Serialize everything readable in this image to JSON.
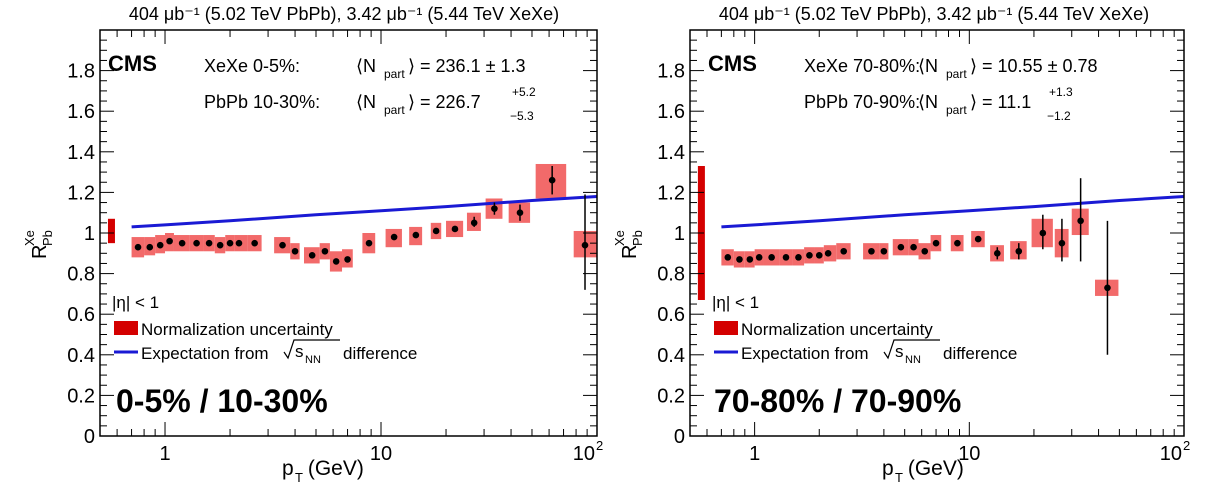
{
  "panels": [
    {
      "header": "404 μb⁻¹ (5.02 TeV PbPb), 3.42 μb⁻¹ (5.44 TeV XeXe)",
      "cms": "CMS",
      "ann1_label": "XeXe 0-5%:",
      "ann1_npart": "⟨N",
      "ann1_sub": "part",
      "ann1_value": "⟩ = 236.1 ± 1.3",
      "ann2_label": "PbPb 10-30%:",
      "ann2_npart": "⟨N",
      "ann2_sub": "part",
      "ann2_value": "⟩ = 226.7",
      "ann2_up": "+5.2",
      "ann2_down": "−5.3",
      "eta_text": "|η| < 1",
      "legend_norm": "Normalization uncertainty",
      "legend_expect": "Expectation from",
      "legend_sqrt": "s",
      "legend_sqrt_sub": "NN",
      "legend_expect_tail": "difference",
      "centrality": "0-5% / 10-30%",
      "ylabel_main": "R",
      "ylabel_sup": "Xe",
      "ylabel_sub": "Pb",
      "xlabel_main": "p",
      "xlabel_sub": "T",
      "xlabel_tail": " (GeV)"
    },
    {
      "header": "404 μb⁻¹ (5.02 TeV PbPb), 3.42 μb⁻¹ (5.44 TeV XeXe)",
      "cms": "CMS",
      "ann1_label": "XeXe 70-80%:",
      "ann1_npart": "⟨N",
      "ann1_sub": "part",
      "ann1_value": "⟩ = 10.55 ± 0.78",
      "ann2_label": "PbPb 70-90%:",
      "ann2_npart": "⟨N",
      "ann2_sub": "part",
      "ann2_value": "⟩ = 11.1",
      "ann2_up": "+1.3",
      "ann2_down": "−1.2",
      "eta_text": "|η| < 1",
      "legend_norm": "Normalization uncertainty",
      "legend_expect": "Expectation from",
      "legend_sqrt": "s",
      "legend_sqrt_sub": "NN",
      "legend_expect_tail": "difference",
      "centrality": "70-80% / 70-90%",
      "ylabel_main": "R",
      "ylabel_sup": "Xe",
      "ylabel_sub": "Pb",
      "xlabel_main": "p",
      "xlabel_sub": "T",
      "xlabel_tail": " (GeV)"
    }
  ],
  "colors": {
    "syst_box": "#f26a6a",
    "norm_box": "#d40000",
    "expectation_line": "#1a1ad4",
    "points": "#000000"
  },
  "chart_data": [
    {
      "type": "scatter",
      "title": "404 μb⁻¹ (5.02 TeV PbPb), 3.42 μb⁻¹ (5.44 TeV XeXe)",
      "xlabel": "p_T (GeV)",
      "ylabel": "R^Xe_Pb",
      "xscale": "log",
      "xlim": [
        0.5,
        100
      ],
      "ylim": [
        0,
        2
      ],
      "yticks": [
        0,
        0.2,
        0.4,
        0.6,
        0.8,
        1,
        1.2,
        1.4,
        1.6,
        1.8
      ],
      "xticks": [
        "1",
        "10",
        "10^2"
      ],
      "normalization": {
        "center": 1.0,
        "low": 0.95,
        "high": 1.07
      },
      "expectation": {
        "x": [
          0.7,
          1,
          2,
          5,
          10,
          20,
          50,
          100
        ],
        "y": [
          1.03,
          1.04,
          1.06,
          1.09,
          1.11,
          1.13,
          1.16,
          1.18
        ]
      },
      "points": [
        {
          "x": 0.75,
          "y": 0.93,
          "xl": 0.7,
          "xh": 0.8,
          "syl": 0.88,
          "syh": 0.98,
          "eyl": 0.92,
          "eyh": 0.94
        },
        {
          "x": 0.85,
          "y": 0.93,
          "xl": 0.8,
          "xh": 0.9,
          "syl": 0.89,
          "syh": 0.98,
          "eyl": 0.92,
          "eyh": 0.94
        },
        {
          "x": 0.95,
          "y": 0.94,
          "xl": 0.9,
          "xh": 1.0,
          "syl": 0.9,
          "syh": 0.99,
          "eyl": 0.93,
          "eyh": 0.95
        },
        {
          "x": 1.05,
          "y": 0.96,
          "xl": 1.0,
          "xh": 1.1,
          "syl": 0.91,
          "syh": 1.0,
          "eyl": 0.95,
          "eyh": 0.97
        },
        {
          "x": 1.2,
          "y": 0.95,
          "xl": 1.1,
          "xh": 1.3,
          "syl": 0.91,
          "syh": 0.99,
          "eyl": 0.94,
          "eyh": 0.96
        },
        {
          "x": 1.4,
          "y": 0.95,
          "xl": 1.3,
          "xh": 1.5,
          "syl": 0.91,
          "syh": 0.99,
          "eyl": 0.94,
          "eyh": 0.96
        },
        {
          "x": 1.6,
          "y": 0.95,
          "xl": 1.5,
          "xh": 1.7,
          "syl": 0.91,
          "syh": 0.99,
          "eyl": 0.94,
          "eyh": 0.96
        },
        {
          "x": 1.8,
          "y": 0.94,
          "xl": 1.7,
          "xh": 1.9,
          "syl": 0.9,
          "syh": 0.98,
          "eyl": 0.93,
          "eyh": 0.95
        },
        {
          "x": 2.0,
          "y": 0.95,
          "xl": 1.9,
          "xh": 2.1,
          "syl": 0.91,
          "syh": 0.99,
          "eyl": 0.94,
          "eyh": 0.96
        },
        {
          "x": 2.2,
          "y": 0.95,
          "xl": 2.1,
          "xh": 2.4,
          "syl": 0.91,
          "syh": 0.99,
          "eyl": 0.94,
          "eyh": 0.96
        },
        {
          "x": 2.6,
          "y": 0.95,
          "xl": 2.4,
          "xh": 2.8,
          "syl": 0.91,
          "syh": 0.99,
          "eyl": 0.94,
          "eyh": 0.96
        },
        {
          "x": 3.5,
          "y": 0.94,
          "xl": 3.2,
          "xh": 3.8,
          "syl": 0.9,
          "syh": 0.98,
          "eyl": 0.93,
          "eyh": 0.95
        },
        {
          "x": 4.0,
          "y": 0.91,
          "xl": 3.8,
          "xh": 4.2,
          "syl": 0.87,
          "syh": 0.95,
          "eyl": 0.9,
          "eyh": 0.92
        },
        {
          "x": 4.8,
          "y": 0.89,
          "xl": 4.4,
          "xh": 5.2,
          "syl": 0.85,
          "syh": 0.93,
          "eyl": 0.88,
          "eyh": 0.9
        },
        {
          "x": 5.5,
          "y": 0.91,
          "xl": 5.2,
          "xh": 5.8,
          "syl": 0.87,
          "syh": 0.95,
          "eyl": 0.9,
          "eyh": 0.92
        },
        {
          "x": 6.2,
          "y": 0.86,
          "xl": 5.8,
          "xh": 6.6,
          "syl": 0.81,
          "syh": 0.91,
          "eyl": 0.85,
          "eyh": 0.87
        },
        {
          "x": 7.0,
          "y": 0.87,
          "xl": 6.6,
          "xh": 7.4,
          "syl": 0.83,
          "syh": 0.92,
          "eyl": 0.86,
          "eyh": 0.88
        },
        {
          "x": 8.8,
          "y": 0.95,
          "xl": 8.2,
          "xh": 9.4,
          "syl": 0.9,
          "syh": 1.0,
          "eyl": 0.94,
          "eyh": 0.96
        },
        {
          "x": 11.5,
          "y": 0.98,
          "xl": 10.5,
          "xh": 12.5,
          "syl": 0.93,
          "syh": 1.02,
          "eyl": 0.97,
          "eyh": 0.99
        },
        {
          "x": 14.5,
          "y": 0.99,
          "xl": 13.5,
          "xh": 15.5,
          "syl": 0.94,
          "syh": 1.03,
          "eyl": 0.98,
          "eyh": 1.0
        },
        {
          "x": 18.0,
          "y": 1.01,
          "xl": 17.0,
          "xh": 19.0,
          "syl": 0.97,
          "syh": 1.05,
          "eyl": 1.0,
          "eyh": 1.02
        },
        {
          "x": 22.0,
          "y": 1.02,
          "xl": 20.0,
          "xh": 24.0,
          "syl": 0.98,
          "syh": 1.06,
          "eyl": 1.01,
          "eyh": 1.03
        },
        {
          "x": 27.0,
          "y": 1.05,
          "xl": 25.0,
          "xh": 29.0,
          "syl": 1.01,
          "syh": 1.1,
          "eyl": 1.03,
          "eyh": 1.08
        },
        {
          "x": 33.5,
          "y": 1.12,
          "xl": 30.5,
          "xh": 36.5,
          "syl": 1.07,
          "syh": 1.17,
          "eyl": 1.09,
          "eyh": 1.15
        },
        {
          "x": 44.0,
          "y": 1.1,
          "xl": 39.0,
          "xh": 49.0,
          "syl": 1.05,
          "syh": 1.15,
          "eyl": 1.06,
          "eyh": 1.14
        },
        {
          "x": 62.0,
          "y": 1.26,
          "xl": 52.0,
          "xh": 72.0,
          "syl": 1.17,
          "syh": 1.34,
          "eyl": 1.19,
          "eyh": 1.33
        },
        {
          "x": 88.0,
          "y": 0.94,
          "xl": 78.0,
          "xh": 100.0,
          "syl": 0.88,
          "syh": 1.01,
          "eyl": 0.72,
          "eyh": 1.19
        }
      ]
    },
    {
      "type": "scatter",
      "title": "404 μb⁻¹ (5.02 TeV PbPb), 3.42 μb⁻¹ (5.44 TeV XeXe)",
      "xlabel": "p_T (GeV)",
      "ylabel": "R^Xe_Pb",
      "xscale": "log",
      "xlim": [
        0.5,
        100
      ],
      "ylim": [
        0,
        2
      ],
      "yticks": [
        0,
        0.2,
        0.4,
        0.6,
        0.8,
        1,
        1.2,
        1.4,
        1.6,
        1.8
      ],
      "xticks": [
        "1",
        "10",
        "10^2"
      ],
      "normalization": {
        "center": 1.0,
        "low": 0.67,
        "high": 1.33
      },
      "expectation": {
        "x": [
          0.7,
          1,
          2,
          5,
          10,
          20,
          50,
          100
        ],
        "y": [
          1.03,
          1.04,
          1.06,
          1.09,
          1.11,
          1.13,
          1.16,
          1.18
        ]
      },
      "points": [
        {
          "x": 0.75,
          "y": 0.88,
          "xl": 0.7,
          "xh": 0.8,
          "syl": 0.84,
          "syh": 0.92,
          "eyl": 0.87,
          "eyh": 0.89
        },
        {
          "x": 0.85,
          "y": 0.87,
          "xl": 0.8,
          "xh": 0.9,
          "syl": 0.83,
          "syh": 0.91,
          "eyl": 0.86,
          "eyh": 0.88
        },
        {
          "x": 0.95,
          "y": 0.87,
          "xl": 0.9,
          "xh": 1.0,
          "syl": 0.83,
          "syh": 0.91,
          "eyl": 0.86,
          "eyh": 0.88
        },
        {
          "x": 1.05,
          "y": 0.88,
          "xl": 1.0,
          "xh": 1.1,
          "syl": 0.84,
          "syh": 0.92,
          "eyl": 0.87,
          "eyh": 0.89
        },
        {
          "x": 1.2,
          "y": 0.88,
          "xl": 1.1,
          "xh": 1.3,
          "syl": 0.84,
          "syh": 0.92,
          "eyl": 0.87,
          "eyh": 0.89
        },
        {
          "x": 1.4,
          "y": 0.88,
          "xl": 1.3,
          "xh": 1.5,
          "syl": 0.84,
          "syh": 0.92,
          "eyl": 0.87,
          "eyh": 0.89
        },
        {
          "x": 1.6,
          "y": 0.88,
          "xl": 1.5,
          "xh": 1.7,
          "syl": 0.84,
          "syh": 0.92,
          "eyl": 0.87,
          "eyh": 0.89
        },
        {
          "x": 1.8,
          "y": 0.89,
          "xl": 1.7,
          "xh": 1.9,
          "syl": 0.85,
          "syh": 0.93,
          "eyl": 0.88,
          "eyh": 0.9
        },
        {
          "x": 2.0,
          "y": 0.89,
          "xl": 1.9,
          "xh": 2.1,
          "syl": 0.85,
          "syh": 0.93,
          "eyl": 0.88,
          "eyh": 0.9
        },
        {
          "x": 2.2,
          "y": 0.9,
          "xl": 2.1,
          "xh": 2.4,
          "syl": 0.86,
          "syh": 0.94,
          "eyl": 0.89,
          "eyh": 0.91
        },
        {
          "x": 2.6,
          "y": 0.91,
          "xl": 2.4,
          "xh": 2.8,
          "syl": 0.87,
          "syh": 0.95,
          "eyl": 0.9,
          "eyh": 0.92
        },
        {
          "x": 3.5,
          "y": 0.91,
          "xl": 3.2,
          "xh": 3.8,
          "syl": 0.87,
          "syh": 0.95,
          "eyl": 0.9,
          "eyh": 0.92
        },
        {
          "x": 4.0,
          "y": 0.91,
          "xl": 3.8,
          "xh": 4.2,
          "syl": 0.87,
          "syh": 0.95,
          "eyl": 0.9,
          "eyh": 0.92
        },
        {
          "x": 4.8,
          "y": 0.93,
          "xl": 4.4,
          "xh": 5.2,
          "syl": 0.89,
          "syh": 0.97,
          "eyl": 0.92,
          "eyh": 0.94
        },
        {
          "x": 5.5,
          "y": 0.93,
          "xl": 5.2,
          "xh": 5.8,
          "syl": 0.89,
          "syh": 0.97,
          "eyl": 0.92,
          "eyh": 0.94
        },
        {
          "x": 6.2,
          "y": 0.91,
          "xl": 5.8,
          "xh": 6.6,
          "syl": 0.87,
          "syh": 0.95,
          "eyl": 0.9,
          "eyh": 0.92
        },
        {
          "x": 7.0,
          "y": 0.95,
          "xl": 6.6,
          "xh": 7.4,
          "syl": 0.91,
          "syh": 0.99,
          "eyl": 0.94,
          "eyh": 0.96
        },
        {
          "x": 8.8,
          "y": 0.95,
          "xl": 8.2,
          "xh": 9.4,
          "syl": 0.91,
          "syh": 0.99,
          "eyl": 0.94,
          "eyh": 0.96
        },
        {
          "x": 11.0,
          "y": 0.97,
          "xl": 10.2,
          "xh": 11.8,
          "syl": 0.93,
          "syh": 1.01,
          "eyl": 0.96,
          "eyh": 0.98
        },
        {
          "x": 13.5,
          "y": 0.9,
          "xl": 12.5,
          "xh": 14.5,
          "syl": 0.86,
          "syh": 0.94,
          "eyl": 0.87,
          "eyh": 0.93
        },
        {
          "x": 17.0,
          "y": 0.91,
          "xl": 15.5,
          "xh": 18.5,
          "syl": 0.87,
          "syh": 0.96,
          "eyl": 0.87,
          "eyh": 0.95
        },
        {
          "x": 22.0,
          "y": 1.0,
          "xl": 19.5,
          "xh": 24.5,
          "syl": 0.93,
          "syh": 1.07,
          "eyl": 0.92,
          "eyh": 1.09
        },
        {
          "x": 27.0,
          "y": 0.95,
          "xl": 25.0,
          "xh": 29.0,
          "syl": 0.88,
          "syh": 1.02,
          "eyl": 0.86,
          "eyh": 1.07
        },
        {
          "x": 33.0,
          "y": 1.06,
          "xl": 30.0,
          "xh": 36.0,
          "syl": 0.99,
          "syh": 1.12,
          "eyl": 0.86,
          "eyh": 1.27
        },
        {
          "x": 44.0,
          "y": 0.73,
          "xl": 38.5,
          "xh": 49.5,
          "syl": 0.69,
          "syh": 0.77,
          "eyl": 0.4,
          "eyh": 1.06
        }
      ]
    }
  ]
}
